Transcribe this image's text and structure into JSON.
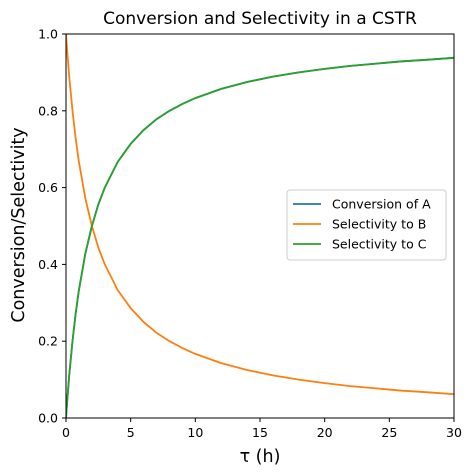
{
  "chart_data": {
    "type": "line",
    "title": "Conversion and Selectivity in a CSTR",
    "xlabel": "τ (h)",
    "ylabel": "Conversion/Selectivity",
    "xlim": [
      0,
      30
    ],
    "ylim": [
      0,
      1.0
    ],
    "xticks": [
      0,
      5,
      10,
      15,
      20,
      25,
      30
    ],
    "xtick_labels": [
      "0",
      "5",
      "10",
      "15",
      "20",
      "25",
      "30"
    ],
    "yticks": [
      0.0,
      0.2,
      0.4,
      0.6,
      0.8,
      1.0
    ],
    "ytick_labels": [
      "0.0",
      "0.2",
      "0.4",
      "0.6",
      "0.8",
      "1.0"
    ],
    "grid": false,
    "legend_position": "center-right",
    "x": [
      0.05,
      0.25,
      0.5,
      0.75,
      1,
      1.5,
      2,
      2.5,
      3,
      4,
      5,
      6,
      7,
      8,
      9,
      10,
      12,
      14,
      16,
      18,
      20,
      22,
      24,
      26,
      28,
      30
    ],
    "series": [
      {
        "name": "Conversion of A",
        "color": "#1f77b4",
        "values": [
          0.024,
          0.111,
          0.2,
          0.273,
          0.333,
          0.429,
          0.5,
          0.556,
          0.6,
          0.667,
          0.714,
          0.75,
          0.778,
          0.8,
          0.818,
          0.833,
          0.857,
          0.875,
          0.889,
          0.9,
          0.909,
          0.917,
          0.923,
          0.929,
          0.933,
          0.938
        ]
      },
      {
        "name": "Selectivity to B",
        "color": "#ff7f0e",
        "values": [
          0.976,
          0.889,
          0.8,
          0.727,
          0.667,
          0.571,
          0.5,
          0.444,
          0.4,
          0.333,
          0.286,
          0.25,
          0.222,
          0.2,
          0.182,
          0.167,
          0.143,
          0.125,
          0.111,
          0.1,
          0.091,
          0.083,
          0.077,
          0.071,
          0.067,
          0.062
        ]
      },
      {
        "name": "Selectivity to C",
        "color": "#2ca02c",
        "values": [
          0.024,
          0.111,
          0.2,
          0.273,
          0.333,
          0.429,
          0.5,
          0.556,
          0.6,
          0.667,
          0.714,
          0.75,
          0.778,
          0.8,
          0.818,
          0.833,
          0.857,
          0.875,
          0.889,
          0.9,
          0.909,
          0.917,
          0.923,
          0.929,
          0.933,
          0.938
        ]
      }
    ]
  }
}
